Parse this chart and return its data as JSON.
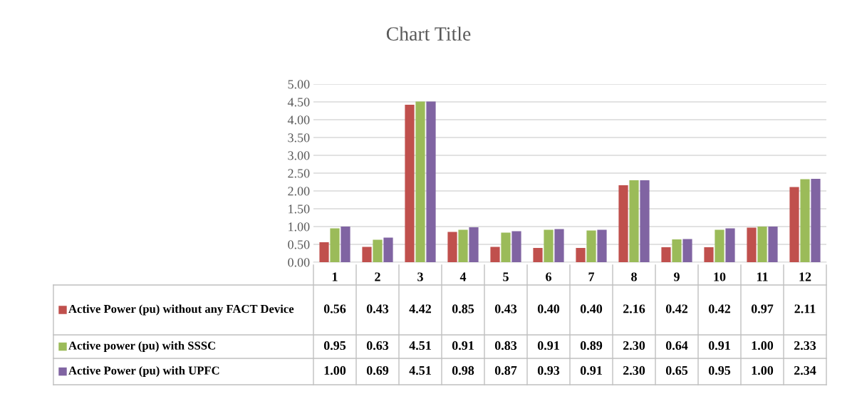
{
  "chart_data": {
    "type": "bar",
    "title": "Chart Title",
    "categories": [
      "1",
      "2",
      "3",
      "4",
      "5",
      "6",
      "7",
      "8",
      "9",
      "10",
      "11",
      "12"
    ],
    "series": [
      {
        "name": "Active Power (pu) without any FACT Device",
        "color": "#c0504d",
        "values": [
          0.56,
          0.43,
          4.42,
          0.85,
          0.43,
          0.4,
          0.4,
          2.16,
          0.42,
          0.42,
          0.97,
          2.11
        ],
        "value_labels": [
          "0.56",
          "0.43",
          "4.42",
          "0.85",
          "0.43",
          "0.40",
          "0.40",
          "2.16",
          "0.42",
          "0.42",
          "0.97",
          "2.11"
        ]
      },
      {
        "name": "Active power (pu) with SSSC",
        "color": "#9bbb59",
        "values": [
          0.95,
          0.63,
          4.51,
          0.91,
          0.83,
          0.91,
          0.89,
          2.3,
          0.64,
          0.91,
          1.0,
          2.33
        ],
        "value_labels": [
          "0.95",
          "0.63",
          "4.51",
          "0.91",
          "0.83",
          "0.91",
          "0.89",
          "2.30",
          "0.64",
          "0.91",
          "1.00",
          "2.33"
        ]
      },
      {
        "name": "Active Power (pu) with UPFC",
        "color": "#8064a2",
        "values": [
          1.0,
          0.69,
          4.51,
          0.98,
          0.87,
          0.93,
          0.91,
          2.3,
          0.65,
          0.95,
          1.0,
          2.34
        ],
        "value_labels": [
          "1.00",
          "0.69",
          "4.51",
          "0.98",
          "0.87",
          "0.93",
          "0.91",
          "2.30",
          "0.65",
          "0.95",
          "1.00",
          "2.34"
        ]
      }
    ],
    "ylim": [
      0,
      5
    ],
    "yticks": [
      {
        "value": 0,
        "label": "0.00"
      },
      {
        "value": 0.5,
        "label": "0.50"
      },
      {
        "value": 1,
        "label": "1.00"
      },
      {
        "value": 1.5,
        "label": "1.50"
      },
      {
        "value": 2,
        "label": "2.00"
      },
      {
        "value": 2.5,
        "label": "2.50"
      },
      {
        "value": 3,
        "label": "3.00"
      },
      {
        "value": 3.5,
        "label": "3.50"
      },
      {
        "value": 4,
        "label": "4.00"
      },
      {
        "value": 4.5,
        "label": "4.50"
      },
      {
        "value": 5,
        "label": "5.00"
      }
    ],
    "grid": "y",
    "legend": "bottom"
  }
}
